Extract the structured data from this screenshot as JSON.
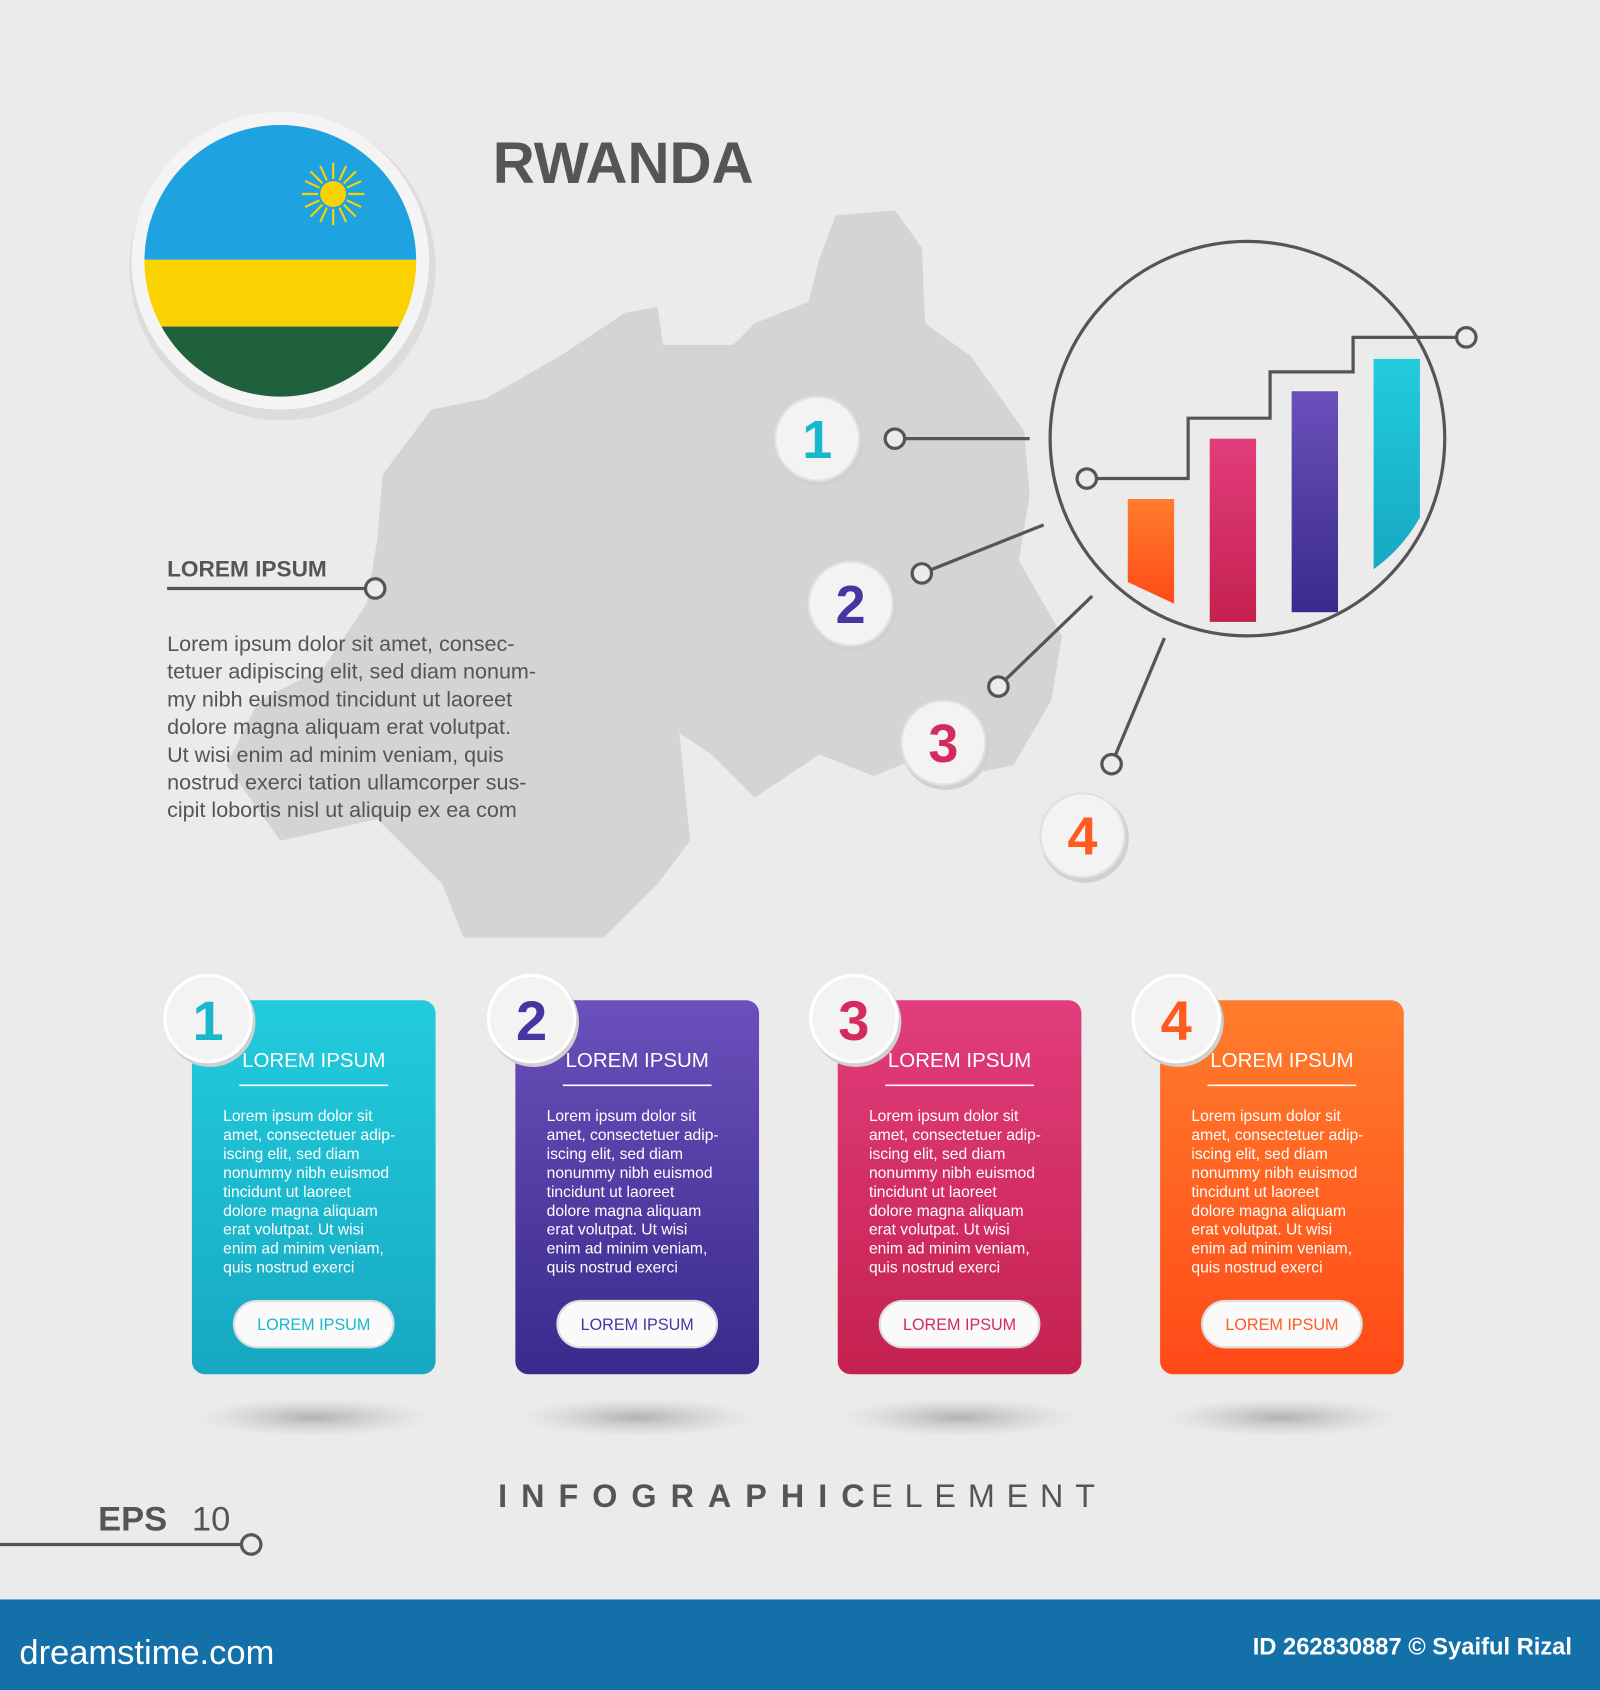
{
  "title": "RWANDA",
  "side": {
    "heading": "LOREM IPSUM",
    "lines": [
      "Lorem ipsum dolor sit amet, consec-",
      "tetuer adipiscing elit, sed diam nonum-",
      "my nibh euismod tincidunt ut laoreet",
      "dolore magna aliquam erat volutpat.",
      "Ut wisi enim ad minim veniam, quis",
      "nostrud exerci tation ullamcorper sus-",
      "cipit lobortis nisl ut aliquip ex ea com"
    ]
  },
  "callouts": [
    "1",
    "2",
    "3",
    "4"
  ],
  "cards": [
    {
      "number": "1",
      "title": "LOREM IPSUM",
      "lines": [
        "Lorem ipsum dolor sit",
        "amet, consectetuer adip-",
        "iscing elit, sed diam",
        "nonummy nibh euismod",
        "tincidunt ut laoreet",
        "dolore magna aliquam",
        "erat volutpat. Ut wisi",
        "enim ad minim veniam,",
        "quis nostrud exerci"
      ],
      "button": "LOREM IPSUM"
    },
    {
      "number": "2",
      "title": "LOREM IPSUM",
      "lines": [
        "Lorem ipsum dolor sit",
        "amet, consectetuer adip-",
        "iscing elit, sed diam",
        "nonummy nibh euismod",
        "tincidunt ut laoreet",
        "dolore magna aliquam",
        "erat volutpat. Ut wisi",
        "enim ad minim veniam,",
        "quis nostrud exerci"
      ],
      "button": "LOREM IPSUM"
    },
    {
      "number": "3",
      "title": "LOREM IPSUM",
      "lines": [
        "Lorem ipsum dolor sit",
        "amet, consectetuer adip-",
        "iscing elit, sed diam",
        "nonummy nibh euismod",
        "tincidunt ut laoreet",
        "dolore magna aliquam",
        "erat volutpat. Ut wisi",
        "enim ad minim veniam,",
        "quis nostrud exerci"
      ],
      "button": "LOREM IPSUM"
    },
    {
      "number": "4",
      "title": "LOREM IPSUM",
      "lines": [
        "Lorem ipsum dolor sit",
        "amet, consectetuer adip-",
        "iscing elit, sed diam",
        "nonummy nibh euismod",
        "tincidunt ut laoreet",
        "dolore magna aliquam",
        "erat volutpat. Ut wisi",
        "enim ad minim veniam,",
        "quis nostrud exerci"
      ],
      "button": "LOREM IPSUM"
    }
  ],
  "footer": {
    "infographic": "INFOGRAPHIC",
    "element": "ELEMENT",
    "eps": "EPS",
    "version": "10"
  },
  "watermark": {
    "site": "dreamstime.com",
    "credit": "ID 262830887 © Syaiful Rizal"
  }
}
